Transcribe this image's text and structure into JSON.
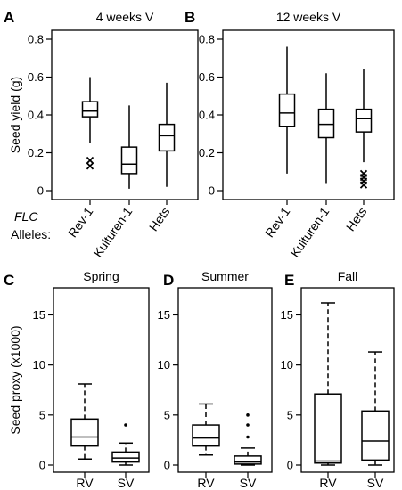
{
  "chart_data": [
    {
      "panel": "A",
      "type": "boxplot",
      "title": "4 weeks V",
      "ylabel": "Seed yield (g)",
      "ylim": [
        0,
        0.8
      ],
      "yticks": [
        "0",
        "0.2",
        "0.4",
        "0.6",
        "0.8"
      ],
      "categories": [
        "Rev-1",
        "Kulturen-1",
        "Hets"
      ],
      "boxes": [
        {
          "whislo": 0.25,
          "q1": 0.39,
          "med": 0.42,
          "q3": 0.47,
          "whishi": 0.6,
          "outliers": [
            0.13,
            0.16
          ]
        },
        {
          "whislo": 0.01,
          "q1": 0.09,
          "med": 0.14,
          "q3": 0.23,
          "whishi": 0.45,
          "outliers": []
        },
        {
          "whislo": 0.02,
          "q1": 0.21,
          "med": 0.29,
          "q3": 0.35,
          "whishi": 0.57,
          "outliers": []
        }
      ]
    },
    {
      "panel": "B",
      "type": "boxplot",
      "title": "12 weeks V",
      "ylim": [
        0,
        0.8
      ],
      "yticks": [
        "0",
        "0.2",
        "0.4",
        "0.6",
        "0.8"
      ],
      "categories": [
        "Rev-1",
        "Kulturen-1",
        "Hets"
      ],
      "boxes": [
        {
          "whislo": 0.09,
          "q1": 0.34,
          "med": 0.41,
          "q3": 0.51,
          "whishi": 0.76,
          "outliers": []
        },
        {
          "whislo": 0.04,
          "q1": 0.28,
          "med": 0.35,
          "q3": 0.43,
          "whishi": 0.62,
          "outliers": []
        },
        {
          "whislo": 0.15,
          "q1": 0.31,
          "med": 0.38,
          "q3": 0.43,
          "whishi": 0.64,
          "outliers": [
            0.03,
            0.05,
            0.07,
            0.09
          ]
        }
      ]
    },
    {
      "panel": "C",
      "type": "boxplot",
      "title": "Spring",
      "ylabel": "Seed proxy (x1000)",
      "ylim": [
        0,
        17
      ],
      "yticks": [
        "0",
        "5",
        "10",
        "15"
      ],
      "categories": [
        "RV",
        "SV"
      ],
      "boxes": [
        {
          "whislo": 0.6,
          "q1": 1.9,
          "med": 2.8,
          "q3": 4.6,
          "whishi": 8.1,
          "outliers": []
        },
        {
          "whislo": 0.0,
          "q1": 0.3,
          "med": 0.7,
          "q3": 1.3,
          "whishi": 2.2,
          "outliers": [
            4.0
          ]
        }
      ]
    },
    {
      "panel": "D",
      "type": "boxplot",
      "title": "Summer",
      "ylim": [
        0,
        17
      ],
      "yticks": [
        "0",
        "5",
        "10",
        "15"
      ],
      "categories": [
        "RV",
        "SV"
      ],
      "boxes": [
        {
          "whislo": 1.0,
          "q1": 1.9,
          "med": 2.7,
          "q3": 4.0,
          "whishi": 6.1,
          "outliers": []
        },
        {
          "whislo": 0.0,
          "q1": 0.1,
          "med": 0.3,
          "q3": 0.9,
          "whishi": 1.7,
          "outliers": [
            2.8,
            4.0,
            5.0
          ]
        }
      ]
    },
    {
      "panel": "E",
      "type": "boxplot",
      "title": "Fall",
      "ylim": [
        0,
        17
      ],
      "yticks": [
        "0",
        "5",
        "10",
        "15"
      ],
      "categories": [
        "RV",
        "SV"
      ],
      "boxes": [
        {
          "whislo": 0.0,
          "q1": 0.2,
          "med": 0.4,
          "q3": 7.1,
          "whishi": 16.2,
          "outliers": []
        },
        {
          "whislo": 0.0,
          "q1": 0.5,
          "med": 2.4,
          "q3": 5.4,
          "whishi": 11.3,
          "outliers": []
        }
      ]
    }
  ],
  "row_labels": {
    "gene": "FLC",
    "alleles": "Alleles:"
  }
}
